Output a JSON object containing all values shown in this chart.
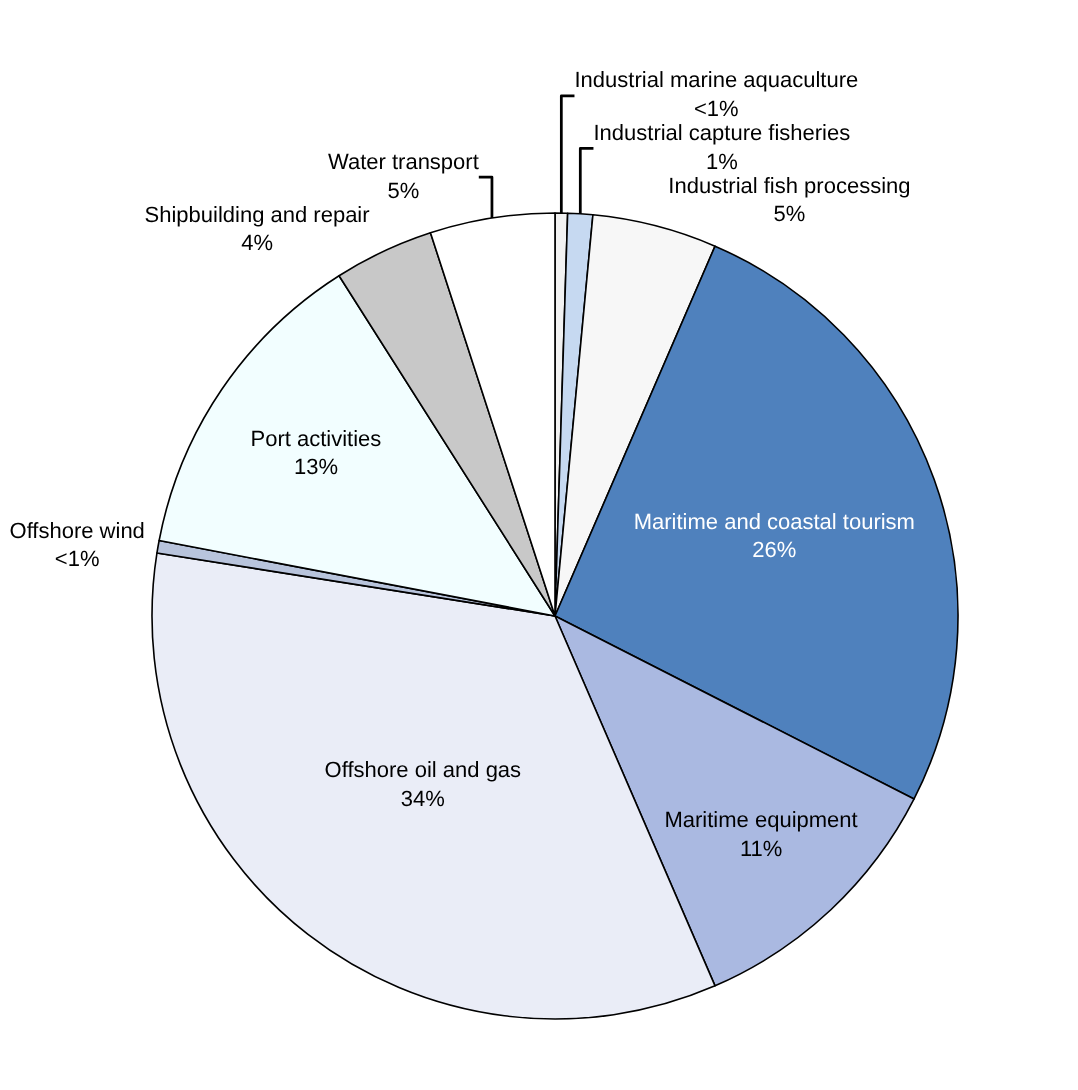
{
  "chart_data": {
    "type": "pie",
    "categories": [
      "Industrial marine aquaculture",
      "Industrial capture fisheries",
      "Industrial fish processing",
      "Maritime and coastal tourism",
      "Maritime equipment",
      "Offshore oil and gas",
      "Offshore wind",
      "Port activities",
      "Shipbuilding and repair",
      "Water transport"
    ],
    "values": [
      0.5,
      1,
      5,
      26,
      11,
      34,
      0.5,
      13,
      4,
      5
    ],
    "value_labels": [
      "<1%",
      "1%",
      "5%",
      "26%",
      "11%",
      "34%",
      "<1%",
      "13%",
      "4%",
      "5%"
    ],
    "colors": [
      "#f2f2f2",
      "#c6d9f1",
      "#f7f7f7",
      "#4f81bd",
      "#aab9e1",
      "#eaedf7",
      "#b8c4dc",
      "#f2feff",
      "#c8c8c8",
      "#ffffff"
    ],
    "legend": false
  }
}
